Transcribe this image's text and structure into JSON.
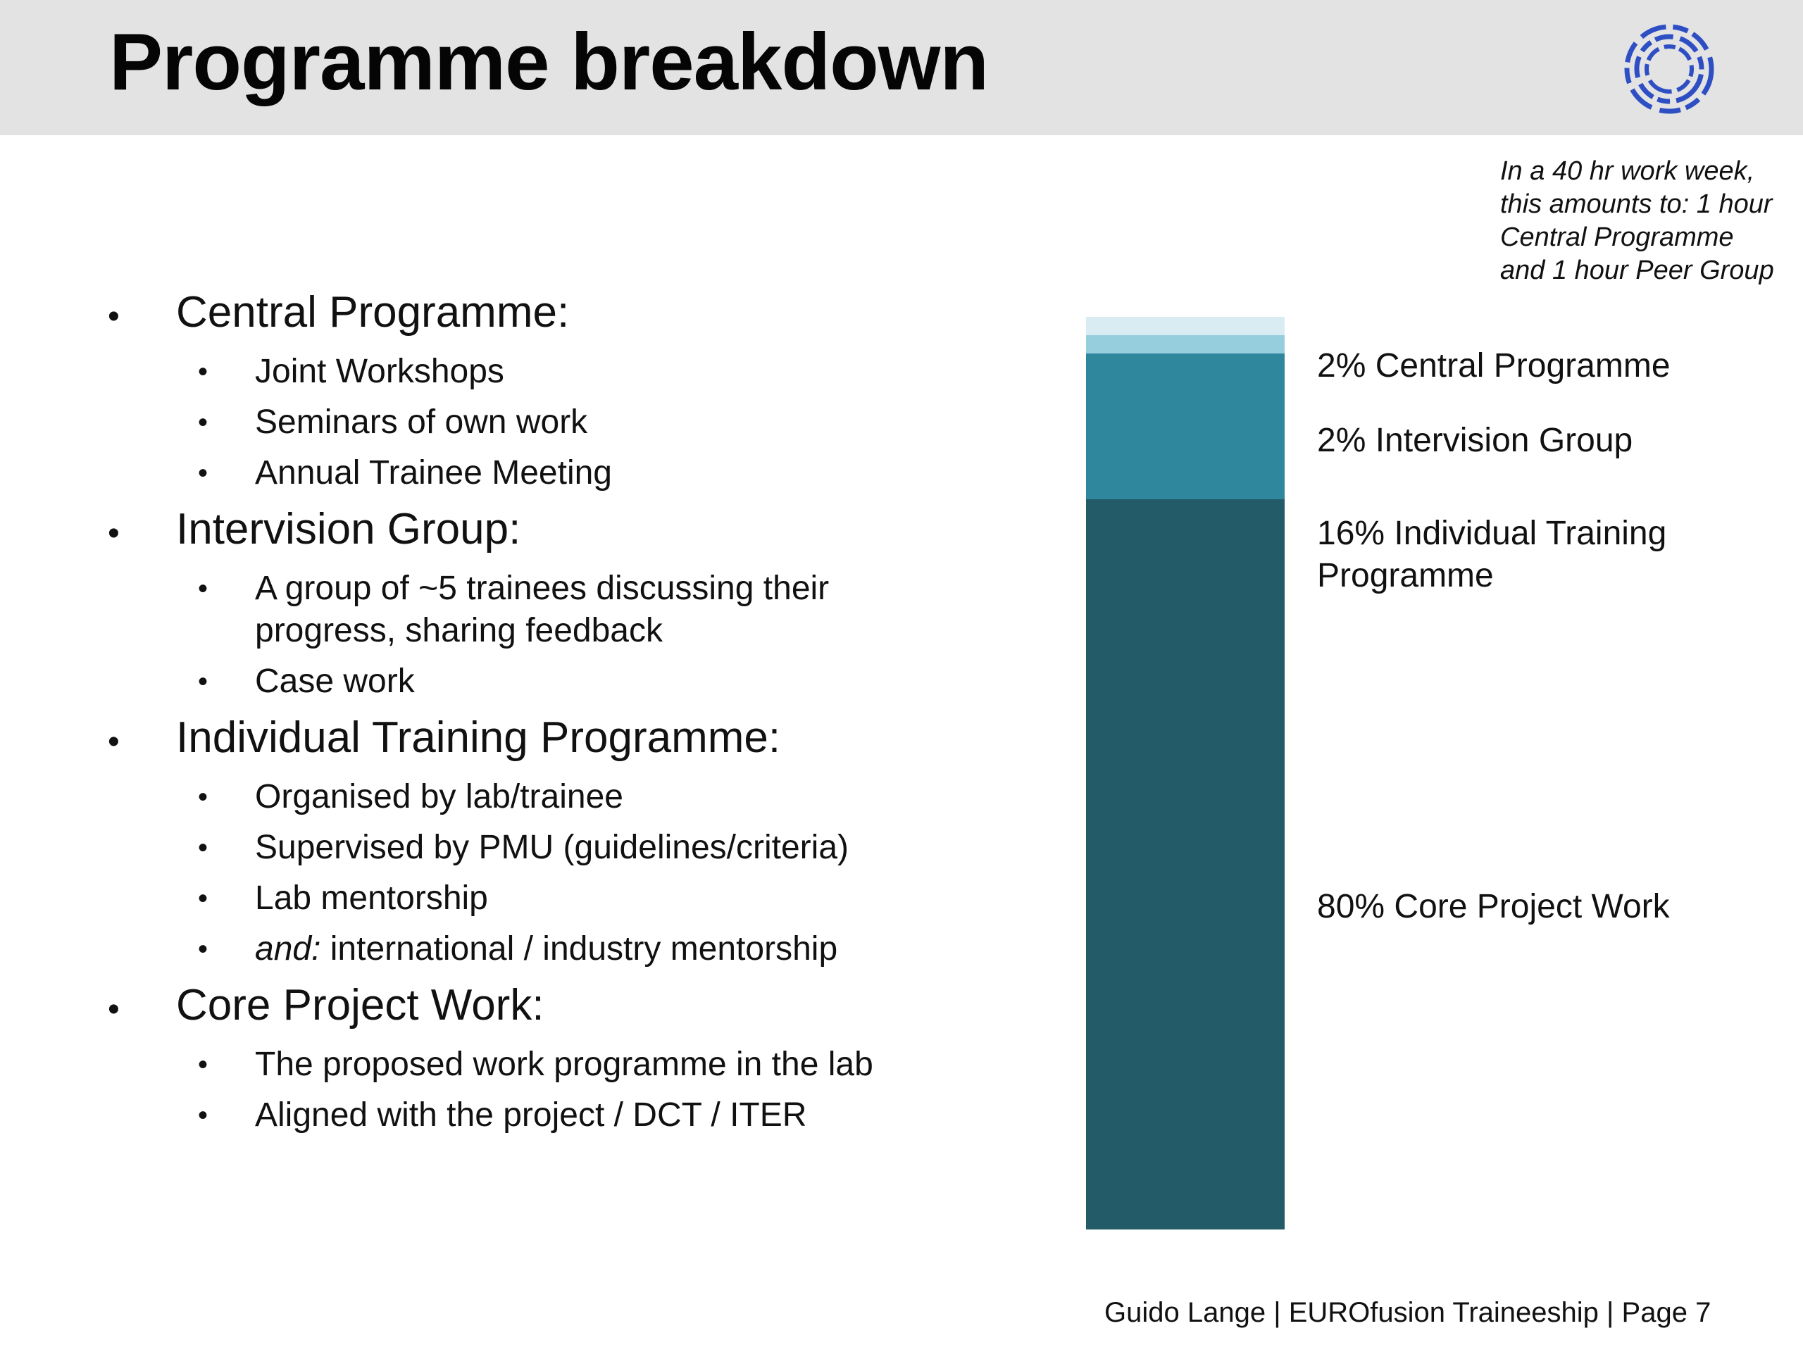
{
  "slide": {
    "title": "Programme breakdown",
    "note": [
      "In a 40 hr work week,",
      "this amounts to: 1 hour",
      "Central Programme",
      "and 1 hour Peer Group"
    ],
    "footer": "Guido Lange | EUROfusion Traineeship | Page 7"
  },
  "bullets": [
    {
      "heading": "Central Programme:",
      "items": [
        "Joint Workshops",
        "Seminars of own work",
        "Annual Trainee Meeting"
      ]
    },
    {
      "heading": "Intervision Group:",
      "items": [
        "A group of ~5 trainees discussing their",
        "progress, sharing feedback",
        "Case work"
      ]
    },
    {
      "heading": "Individual Training Programme:",
      "items": [
        "Organised by lab/trainee",
        "Supervised by PMU (guidelines/criteria)",
        "Lab mentorship",
        "international / industry mentorship"
      ],
      "item_prefix_italic": "and:"
    },
    {
      "heading": "Core Project Work:",
      "items": [
        "The proposed work programme in the lab",
        "Aligned with the project / DCT / ITER"
      ]
    }
  ],
  "chart_data": {
    "type": "bar",
    "stacked": true,
    "categories": [
      ""
    ],
    "series": [
      {
        "name": "Central Programme",
        "values": [
          2
        ],
        "color": "#daecf3",
        "label": "2% Central Programme"
      },
      {
        "name": "Intervision Group",
        "values": [
          2
        ],
        "color": "#96cede",
        "label": "2% Intervision Group"
      },
      {
        "name": "Individual Training Programme",
        "values": [
          16
        ],
        "color": "#2f879d",
        "label": [
          "16% Individual Training",
          "Programme"
        ]
      },
      {
        "name": "Core Project Work",
        "values": [
          80
        ],
        "color": "#235b69",
        "label": "80% Core Project Work"
      }
    ],
    "unit": "%",
    "total": 100
  },
  "logo_color": "#2e4fc4"
}
